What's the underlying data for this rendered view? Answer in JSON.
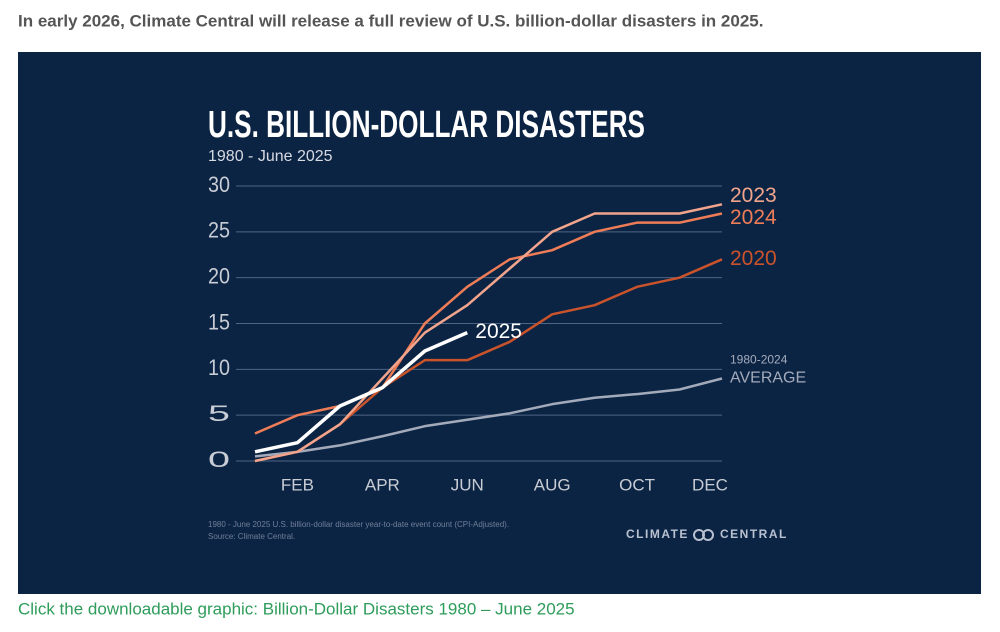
{
  "header": {
    "text": "In early 2026, Climate Central will release a full review of U.S. billion-dollar disasters in 2025."
  },
  "chart_data": {
    "type": "line",
    "title": "U.S. BILLION-DOLLAR DISASTERS",
    "subtitle": "1980 - June 2025",
    "categories": [
      null,
      "FEB",
      null,
      "APR",
      null,
      "JUN",
      null,
      "AUG",
      null,
      "OCT",
      null,
      "DEC"
    ],
    "ylim": [
      0,
      30
    ],
    "yticks": [
      0,
      5,
      10,
      15,
      20,
      25,
      30
    ],
    "grid": true,
    "series": [
      {
        "name": "2023",
        "color": "#f2a58c",
        "values": [
          0,
          1,
          4,
          9,
          14,
          17,
          21,
          25,
          27,
          27,
          27,
          28
        ]
      },
      {
        "name": "2024",
        "color": "#ee7d57",
        "values": [
          3,
          5,
          6,
          8,
          15,
          19,
          22,
          23,
          25,
          26,
          26,
          27
        ]
      },
      {
        "name": "2020",
        "color": "#c9532b",
        "values": [
          0,
          1,
          4,
          8,
          11,
          11,
          13,
          16,
          17,
          19,
          20,
          22
        ]
      },
      {
        "name": "2025",
        "color": "#ffffff",
        "values": [
          1,
          2,
          6,
          8,
          12,
          14,
          null,
          null,
          null,
          null,
          null,
          null
        ]
      },
      {
        "name": [
          "1980-2024",
          "AVERAGE"
        ],
        "color": "#a3abbb",
        "values": [
          0.5,
          1,
          1.7,
          2.7,
          3.8,
          4.5,
          5.2,
          6.2,
          6.9,
          7.3,
          7.8,
          9
        ]
      }
    ],
    "footnote": [
      "1980 - June 2025 U.S. billion-dollar disaster year-to-date event count (CPI-Adjusted).",
      "Source: Climate Central."
    ],
    "brand": [
      "CLIMATE",
      "CENTRAL"
    ]
  },
  "caption": {
    "text": "Click the downloadable graphic: Billion-Dollar Disasters 1980 – June 2025"
  }
}
